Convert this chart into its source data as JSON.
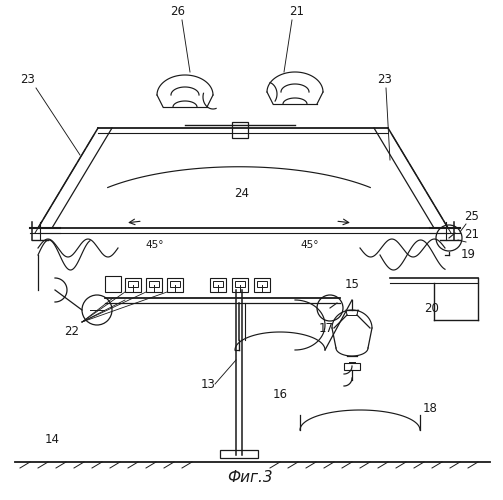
{
  "title": "Фиг.3",
  "bg": "#ffffff",
  "lc": "#1a1a1a"
}
